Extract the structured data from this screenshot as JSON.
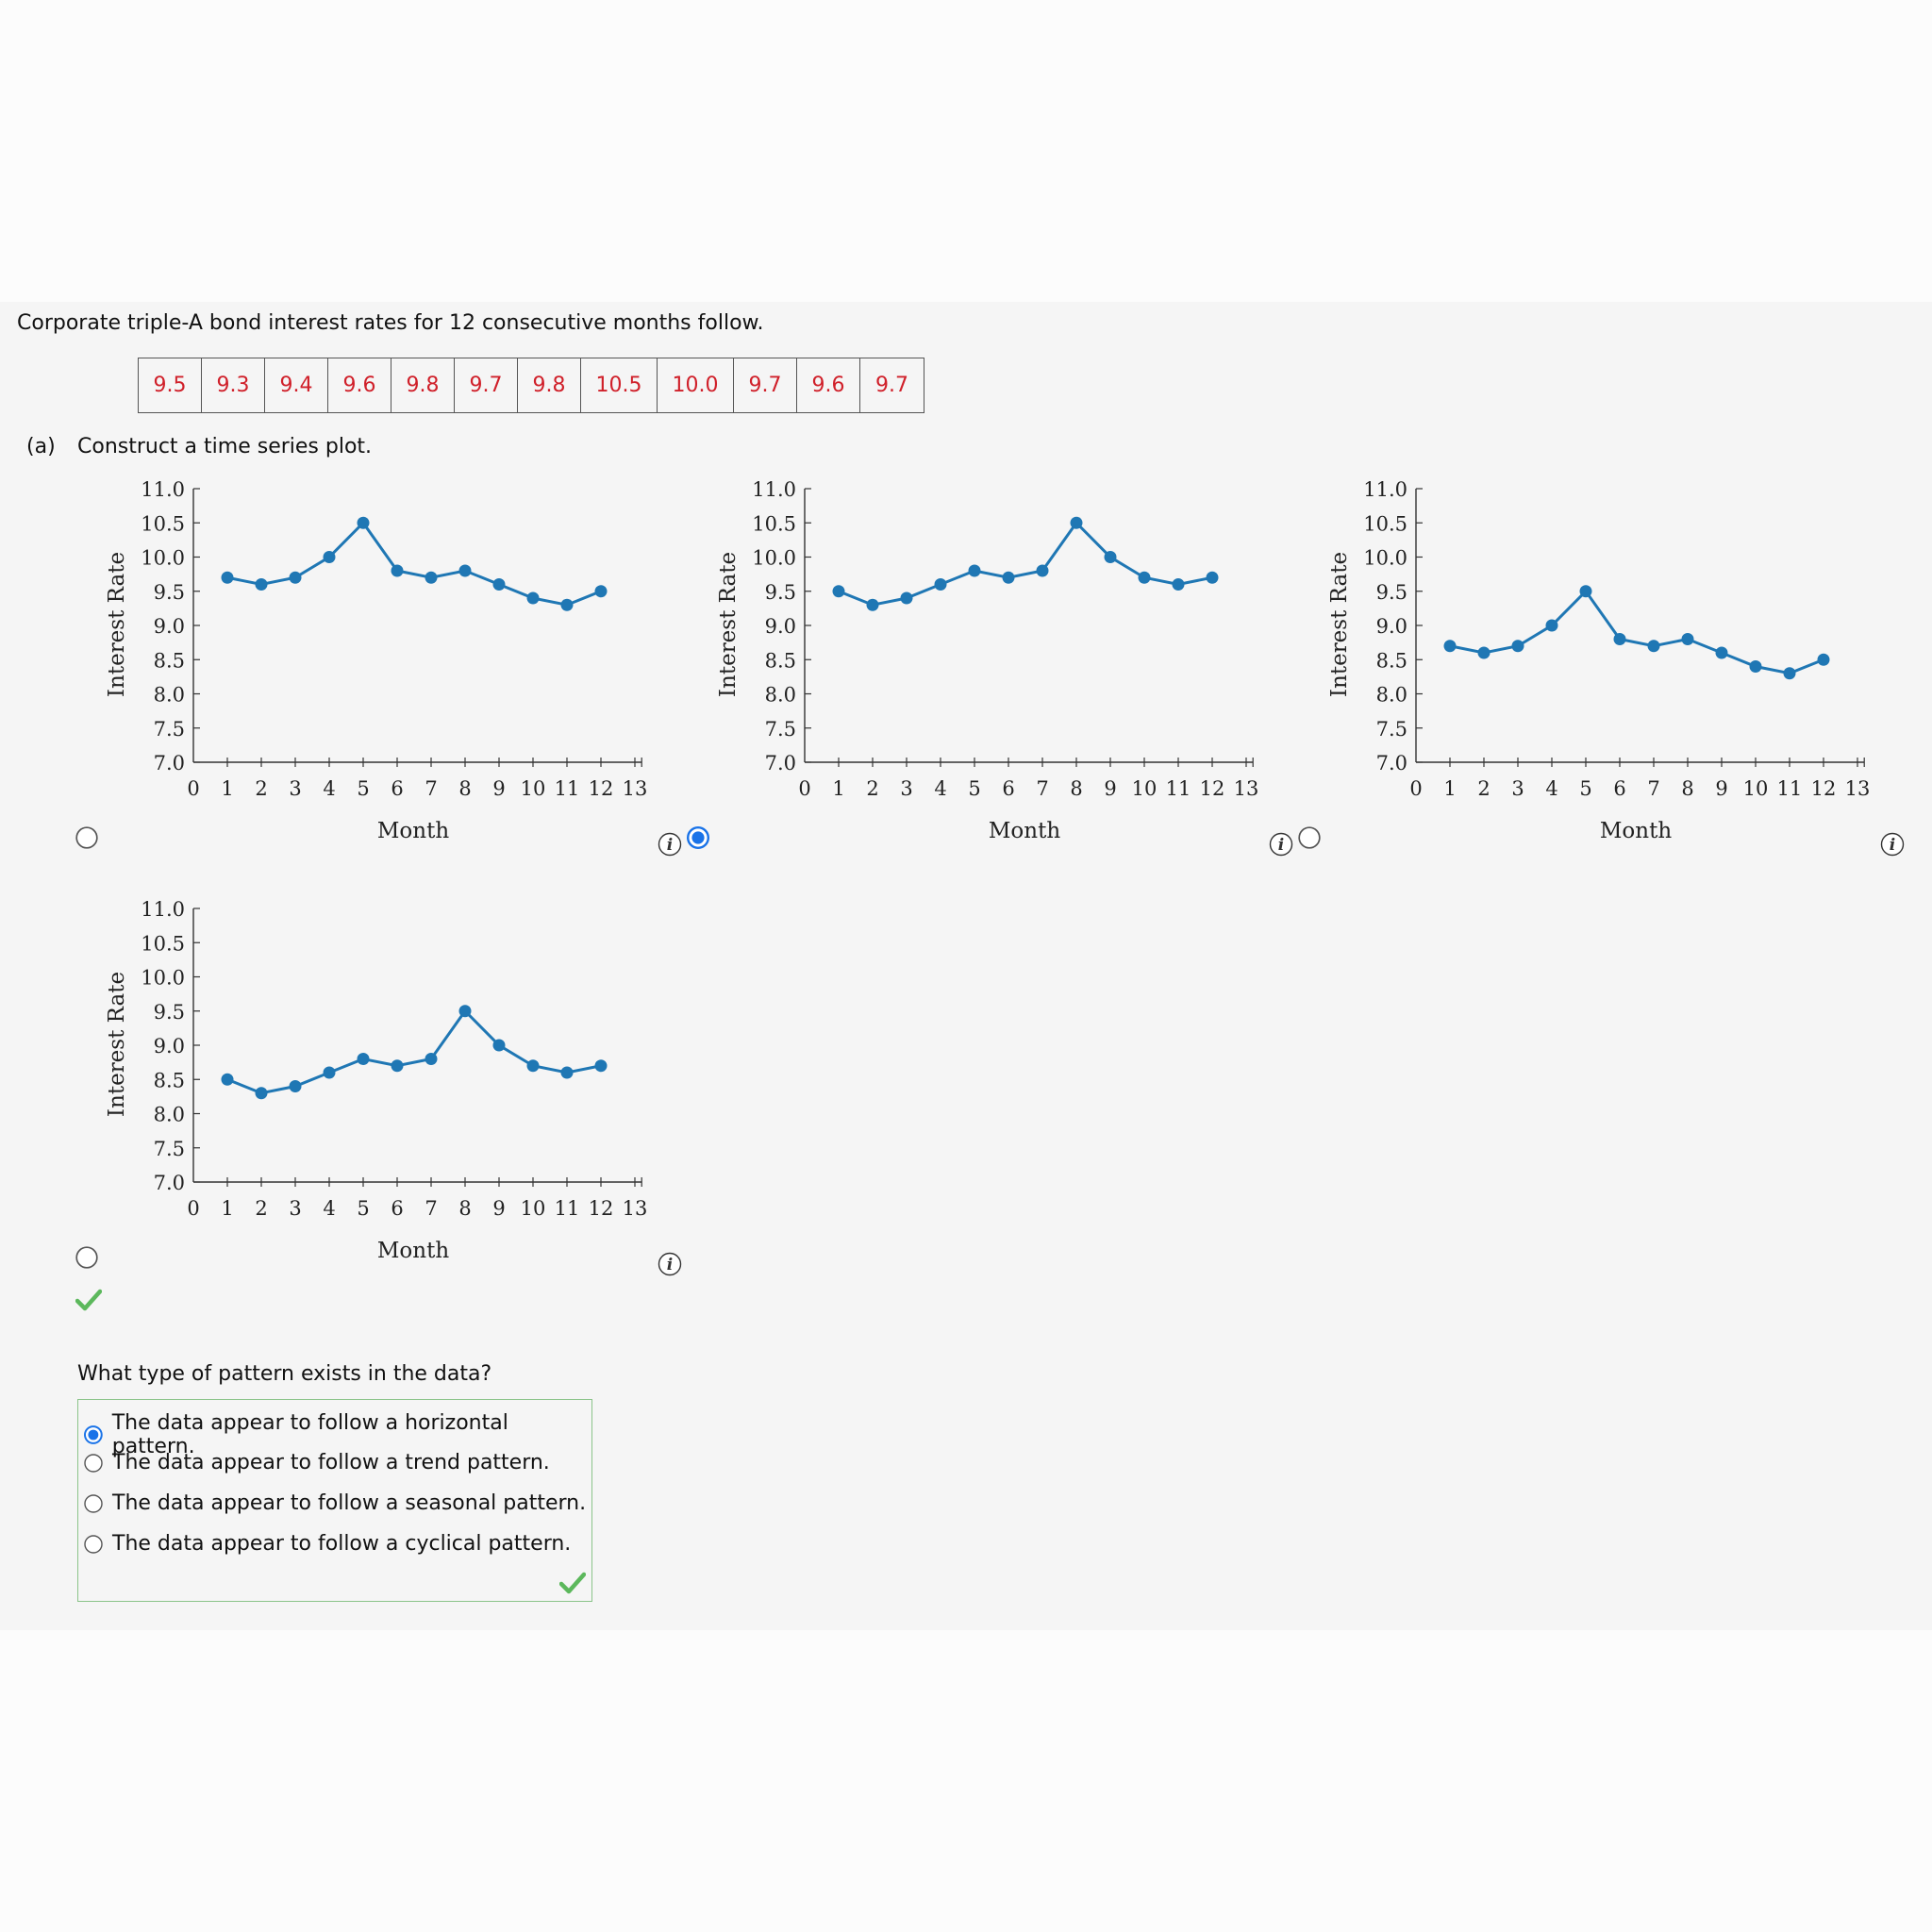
{
  "intro": "Corporate triple-A bond interest rates for 12 consecutive months follow.",
  "table_values": [
    "9.5",
    "9.3",
    "9.4",
    "9.6",
    "9.8",
    "9.7",
    "9.8",
    "10.5",
    "10.0",
    "9.7",
    "9.6",
    "9.7"
  ],
  "part_a": {
    "letter": "(a)",
    "text": "Construct a time series plot."
  },
  "colors": {
    "line": "#1f77b4",
    "selected": "#1a73e8",
    "value_text": "#d0202a",
    "check": "#5cb85c"
  },
  "icons": {
    "info": "info-icon",
    "check": "checkmark-icon"
  },
  "plots": [
    {
      "selected": false,
      "values": [
        9.7,
        9.6,
        9.7,
        10.0,
        10.5,
        9.8,
        9.7,
        9.8,
        9.6,
        9.4,
        9.3,
        9.5
      ]
    },
    {
      "selected": true,
      "values": [
        9.5,
        9.3,
        9.4,
        9.6,
        9.8,
        9.7,
        9.8,
        10.5,
        10.0,
        9.7,
        9.6,
        9.7
      ]
    },
    {
      "selected": false,
      "values": [
        8.7,
        8.6,
        8.7,
        9.0,
        9.5,
        8.8,
        8.7,
        8.8,
        8.6,
        8.4,
        8.3,
        8.5
      ]
    },
    {
      "selected": false,
      "values": [
        8.5,
        8.3,
        8.4,
        8.6,
        8.8,
        8.7,
        8.8,
        9.5,
        9.0,
        8.7,
        8.6,
        8.7
      ]
    }
  ],
  "chart_data": [
    {
      "type": "line",
      "x": [
        1,
        2,
        3,
        4,
        5,
        6,
        7,
        8,
        9,
        10,
        11,
        12
      ],
      "values": [
        9.7,
        9.6,
        9.7,
        10.0,
        10.5,
        9.8,
        9.7,
        9.8,
        9.6,
        9.4,
        9.3,
        9.5
      ],
      "xlabel": "Month",
      "ylabel": "Interest Rate",
      "xlim": [
        0,
        13
      ],
      "ylim": [
        7.0,
        11.0
      ],
      "grid": false,
      "xticks": [
        "0",
        "1",
        "2",
        "3",
        "4",
        "5",
        "6",
        "7",
        "8",
        "9",
        "10",
        "11",
        "12",
        "13"
      ],
      "yticks": [
        "7.0",
        "7.5",
        "8.0",
        "8.5",
        "9.0",
        "9.5",
        "10.0",
        "10.5",
        "11.0"
      ]
    },
    {
      "type": "line",
      "x": [
        1,
        2,
        3,
        4,
        5,
        6,
        7,
        8,
        9,
        10,
        11,
        12
      ],
      "values": [
        9.5,
        9.3,
        9.4,
        9.6,
        9.8,
        9.7,
        9.8,
        10.5,
        10.0,
        9.7,
        9.6,
        9.7
      ],
      "xlabel": "Month",
      "ylabel": "Interest Rate",
      "xlim": [
        0,
        13
      ],
      "ylim": [
        7.0,
        11.0
      ],
      "grid": false,
      "xticks": [
        "0",
        "1",
        "2",
        "3",
        "4",
        "5",
        "6",
        "7",
        "8",
        "9",
        "10",
        "11",
        "12",
        "13"
      ],
      "yticks": [
        "7.0",
        "7.5",
        "8.0",
        "8.5",
        "9.0",
        "9.5",
        "10.0",
        "10.5",
        "11.0"
      ]
    },
    {
      "type": "line",
      "x": [
        1,
        2,
        3,
        4,
        5,
        6,
        7,
        8,
        9,
        10,
        11,
        12
      ],
      "values": [
        8.7,
        8.6,
        8.7,
        9.0,
        9.5,
        8.8,
        8.7,
        8.8,
        8.6,
        8.4,
        8.3,
        8.5
      ],
      "xlabel": "Month",
      "ylabel": "Interest Rate",
      "xlim": [
        0,
        13
      ],
      "ylim": [
        7.0,
        11.0
      ],
      "grid": false,
      "xticks": [
        "0",
        "1",
        "2",
        "3",
        "4",
        "5",
        "6",
        "7",
        "8",
        "9",
        "10",
        "11",
        "12",
        "13"
      ],
      "yticks": [
        "7.0",
        "7.5",
        "8.0",
        "8.5",
        "9.0",
        "9.5",
        "10.0",
        "10.5",
        "11.0"
      ]
    },
    {
      "type": "line",
      "x": [
        1,
        2,
        3,
        4,
        5,
        6,
        7,
        8,
        9,
        10,
        11,
        12
      ],
      "values": [
        8.5,
        8.3,
        8.4,
        8.6,
        8.8,
        8.7,
        8.8,
        9.5,
        9.0,
        8.7,
        8.6,
        8.7
      ],
      "xlabel": "Month",
      "ylabel": "Interest Rate",
      "xlim": [
        0,
        13
      ],
      "ylim": [
        7.0,
        11.0
      ],
      "grid": false,
      "xticks": [
        "0",
        "1",
        "2",
        "3",
        "4",
        "5",
        "6",
        "7",
        "8",
        "9",
        "10",
        "11",
        "12",
        "13"
      ],
      "yticks": [
        "7.0",
        "7.5",
        "8.0",
        "8.5",
        "9.0",
        "9.5",
        "10.0",
        "10.5",
        "11.0"
      ]
    }
  ],
  "question": "What type of pattern exists in the data?",
  "options": [
    {
      "label": "The data appear to follow a horizontal pattern.",
      "selected": true
    },
    {
      "label": "The data appear to follow a trend pattern.",
      "selected": false
    },
    {
      "label": "The data appear to follow a seasonal pattern.",
      "selected": false
    },
    {
      "label": "The data appear to follow a cyclical pattern.",
      "selected": false
    }
  ]
}
